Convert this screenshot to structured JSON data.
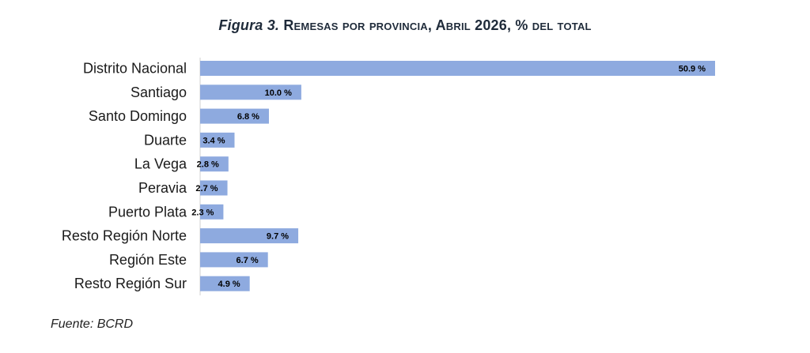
{
  "title": {
    "figure": "Figura 3.",
    "text": "Remesas por provincia, Abril 2026, % del total"
  },
  "source": "Fuente: BCRD",
  "colors": {
    "bar": "#8eaadf",
    "label_text": "#000000",
    "category_text": "#1a1a1a"
  },
  "chart_data": {
    "type": "bar",
    "orientation": "horizontal",
    "categories": [
      "Distrito Nacional",
      "Santiago",
      "Santo Domingo",
      "Duarte",
      "La Vega",
      "Peravia",
      "Puerto Plata",
      "Resto Región Norte",
      "Región Este",
      "Resto Región Sur"
    ],
    "values": [
      50.9,
      10.0,
      6.8,
      3.4,
      2.8,
      2.7,
      2.3,
      9.7,
      6.7,
      4.9
    ],
    "value_labels": [
      "50.9 %",
      "10.0 %",
      "6.8 %",
      "3.4 %",
      "2.8 %",
      "2.7 %",
      "2.3 %",
      "9.7 %",
      "6.7 %",
      "4.9 %"
    ],
    "title": "Figura 3. Remesas por provincia, Abril 2026, % del total",
    "unit": "%",
    "grid": false,
    "legend": "none"
  }
}
